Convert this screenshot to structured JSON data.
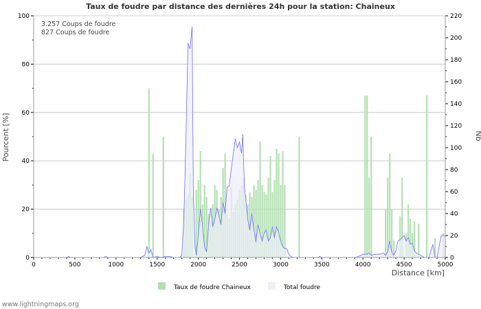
{
  "chart_data": {
    "type": "bar",
    "title": "Taux de foudre par distance des dernières 24h pour la station: Chaineux",
    "xlabel": "Distance   [km]",
    "ylabel": "Pourcent   [%]",
    "y2label": "Nb",
    "xlim": [
      0,
      5000
    ],
    "ylim": [
      0,
      100
    ],
    "y2lim": [
      0,
      220
    ],
    "xticks": [
      "0",
      "500",
      "1000",
      "1500",
      "2000",
      "2500",
      "3000",
      "3500",
      "4000",
      "4500",
      "5000"
    ],
    "yticks": [
      "0",
      "20",
      "40",
      "60",
      "80",
      "100"
    ],
    "y2ticks": [
      "0",
      "20",
      "40",
      "60",
      "80",
      "100",
      "120",
      "140",
      "160",
      "180",
      "200",
      "220"
    ],
    "grid": true,
    "bin_km": 25,
    "info": [
      "3.257  Coups de foudre",
      "827  Coups de foudre"
    ],
    "legend": {
      "placement": "bottom",
      "items": [
        "Taux de foudre Chaineux",
        "Total foudre"
      ]
    },
    "footer": "www.lightningmaps.org",
    "colors": {
      "bars": "#b3e0b3",
      "area": "#eeeefa",
      "line": "#6a6aff"
    },
    "series": [
      {
        "name": "Taux de foudre Chaineux",
        "axis": "left",
        "kind": "bar",
        "points": [
          [
            1400,
            70
          ],
          [
            1450,
            43
          ],
          [
            1575,
            50
          ],
          [
            1825,
            20
          ],
          [
            1850,
            24
          ],
          [
            1875,
            26
          ],
          [
            1900,
            35
          ],
          [
            1925,
            25
          ],
          [
            1975,
            28
          ],
          [
            2000,
            32
          ],
          [
            2025,
            44
          ],
          [
            2050,
            22
          ],
          [
            2075,
            30
          ],
          [
            2100,
            25
          ],
          [
            2125,
            18
          ],
          [
            2150,
            15
          ],
          [
            2175,
            22
          ],
          [
            2200,
            30
          ],
          [
            2225,
            28
          ],
          [
            2250,
            20
          ],
          [
            2275,
            25
          ],
          [
            2300,
            37
          ],
          [
            2325,
            43
          ],
          [
            2350,
            18
          ],
          [
            2375,
            16
          ],
          [
            2400,
            29
          ],
          [
            2425,
            19
          ],
          [
            2450,
            22
          ],
          [
            2475,
            24
          ],
          [
            2500,
            28
          ],
          [
            2525,
            30
          ],
          [
            2550,
            33
          ],
          [
            2575,
            26
          ],
          [
            2600,
            22
          ],
          [
            2625,
            27
          ],
          [
            2650,
            25
          ],
          [
            2675,
            30
          ],
          [
            2700,
            28
          ],
          [
            2725,
            32
          ],
          [
            2750,
            48
          ],
          [
            2775,
            30
          ],
          [
            2800,
            27
          ],
          [
            2825,
            26
          ],
          [
            2850,
            33
          ],
          [
            2875,
            42
          ],
          [
            2900,
            27
          ],
          [
            2925,
            32
          ],
          [
            2950,
            45
          ],
          [
            2975,
            43
          ],
          [
            3000,
            30
          ],
          [
            3025,
            44
          ],
          [
            3050,
            30
          ],
          [
            3225,
            50
          ],
          [
            4025,
            67
          ],
          [
            4050,
            67
          ],
          [
            4075,
            33
          ],
          [
            4100,
            50
          ],
          [
            4275,
            20
          ],
          [
            4300,
            33
          ],
          [
            4325,
            43
          ],
          [
            4350,
            20
          ],
          [
            4375,
            7
          ],
          [
            4450,
            17
          ],
          [
            4475,
            33
          ],
          [
            4525,
            10
          ],
          [
            4550,
            22
          ],
          [
            4575,
            16
          ],
          [
            4600,
            10
          ],
          [
            4625,
            15
          ],
          [
            4675,
            14
          ],
          [
            4775,
            67
          ],
          [
            4875,
            8
          ],
          [
            4975,
            10
          ]
        ]
      },
      {
        "name": "Total foudre",
        "axis": "right",
        "kind": "area",
        "points": [
          [
            0,
            0
          ],
          [
            400,
            0
          ],
          [
            425,
            1
          ],
          [
            450,
            0
          ],
          [
            850,
            0
          ],
          [
            875,
            1
          ],
          [
            900,
            0
          ],
          [
            1300,
            0
          ],
          [
            1325,
            1
          ],
          [
            1350,
            2
          ],
          [
            1375,
            10
          ],
          [
            1400,
            4
          ],
          [
            1425,
            7
          ],
          [
            1450,
            0
          ],
          [
            1500,
            1
          ],
          [
            1550,
            0
          ],
          [
            1600,
            1
          ],
          [
            1650,
            1
          ],
          [
            1700,
            0
          ],
          [
            1775,
            0
          ],
          [
            1800,
            2
          ],
          [
            1825,
            35
          ],
          [
            1850,
            110
          ],
          [
            1875,
            195
          ],
          [
            1900,
            190
          ],
          [
            1925,
            210
          ],
          [
            1940,
            60
          ],
          [
            1960,
            10
          ],
          [
            1975,
            2
          ],
          [
            2000,
            20
          ],
          [
            2025,
            44
          ],
          [
            2050,
            30
          ],
          [
            2075,
            10
          ],
          [
            2100,
            5
          ],
          [
            2125,
            30
          ],
          [
            2150,
            45
          ],
          [
            2175,
            28
          ],
          [
            2200,
            35
          ],
          [
            2225,
            45
          ],
          [
            2250,
            38
          ],
          [
            2275,
            30
          ],
          [
            2300,
            50
          ],
          [
            2325,
            40
          ],
          [
            2350,
            64
          ],
          [
            2375,
            65
          ],
          [
            2400,
            80
          ],
          [
            2425,
            95
          ],
          [
            2450,
            108
          ],
          [
            2475,
            100
          ],
          [
            2500,
            105
          ],
          [
            2525,
            95
          ],
          [
            2540,
            112
          ],
          [
            2560,
            65
          ],
          [
            2575,
            55
          ],
          [
            2600,
            35
          ],
          [
            2625,
            25
          ],
          [
            2650,
            40
          ],
          [
            2675,
            25
          ],
          [
            2700,
            14
          ],
          [
            2725,
            30
          ],
          [
            2750,
            22
          ],
          [
            2775,
            15
          ],
          [
            2800,
            22
          ],
          [
            2825,
            25
          ],
          [
            2850,
            15
          ],
          [
            2875,
            18
          ],
          [
            2900,
            28
          ],
          [
            2925,
            18
          ],
          [
            2950,
            28
          ],
          [
            2975,
            23
          ],
          [
            3000,
            15
          ],
          [
            3025,
            10
          ],
          [
            3050,
            8
          ],
          [
            3075,
            8
          ],
          [
            3100,
            3
          ],
          [
            3125,
            1
          ],
          [
            3150,
            0
          ],
          [
            3450,
            0
          ],
          [
            3475,
            1
          ],
          [
            3500,
            0
          ],
          [
            3900,
            0
          ],
          [
            3950,
            1
          ],
          [
            4000,
            3
          ],
          [
            4050,
            3
          ],
          [
            4075,
            4
          ],
          [
            4100,
            2
          ],
          [
            4150,
            3
          ],
          [
            4200,
            3
          ],
          [
            4250,
            4
          ],
          [
            4275,
            2
          ],
          [
            4300,
            5
          ],
          [
            4325,
            15
          ],
          [
            4350,
            5
          ],
          [
            4375,
            2
          ],
          [
            4400,
            6
          ],
          [
            4425,
            15
          ],
          [
            4450,
            16
          ],
          [
            4475,
            18
          ],
          [
            4500,
            20
          ],
          [
            4525,
            15
          ],
          [
            4550,
            18
          ],
          [
            4575,
            12
          ],
          [
            4600,
            13
          ],
          [
            4625,
            6
          ],
          [
            4650,
            4
          ],
          [
            4675,
            3
          ],
          [
            4700,
            2
          ],
          [
            4750,
            0
          ],
          [
            4800,
            0
          ],
          [
            4850,
            12
          ],
          [
            4875,
            0
          ],
          [
            4900,
            0
          ],
          [
            4950,
            20
          ],
          [
            5000,
            20
          ]
        ]
      }
    ]
  }
}
